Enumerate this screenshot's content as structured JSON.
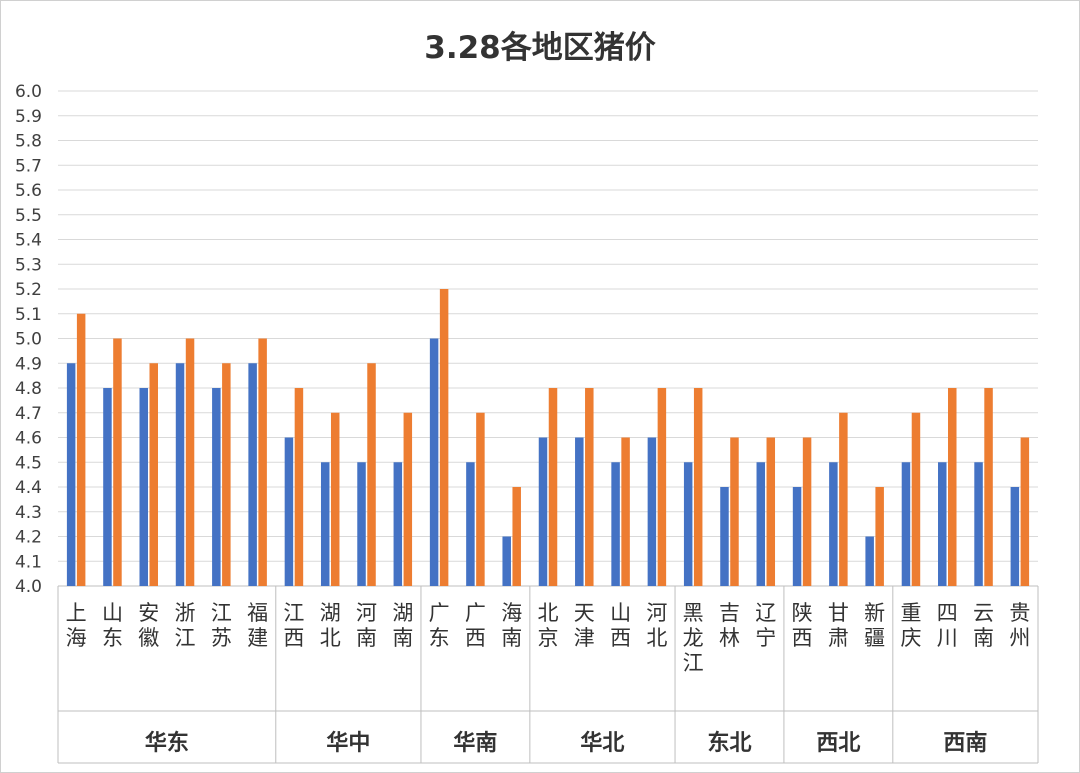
{
  "chart_data": {
    "type": "bar",
    "title": "3.28各地区猪价",
    "xlabel": "",
    "ylabel": "",
    "ylim": [
      4.0,
      6.0
    ],
    "yticks": [
      "4.0",
      "4.1",
      "4.2",
      "4.3",
      "4.4",
      "4.5",
      "4.6",
      "4.7",
      "4.8",
      "4.9",
      "5.0",
      "5.1",
      "5.2",
      "5.3",
      "5.4",
      "5.5",
      "5.6",
      "5.7",
      "5.8",
      "5.9",
      "6.0"
    ],
    "grid": true,
    "legend": "none",
    "colors": [
      "#4472C4",
      "#ED7D31"
    ],
    "categories": [
      "上海",
      "山东",
      "安徽",
      "浙江",
      "江苏",
      "福建",
      "江西",
      "湖北",
      "河南",
      "湖南",
      "广东",
      "广西",
      "海南",
      "北京",
      "天津",
      "山西",
      "河北",
      "黑龙江",
      "吉林",
      "辽宁",
      "陕西",
      "甘肃",
      "新疆",
      "重庆",
      "四川",
      "云南",
      "贵州"
    ],
    "series": [
      {
        "values": [
          4.9,
          4.8,
          4.8,
          4.9,
          4.8,
          4.9,
          4.6,
          4.5,
          4.5,
          4.5,
          5.0,
          4.5,
          4.2,
          4.6,
          4.6,
          4.5,
          4.6,
          4.5,
          4.4,
          4.5,
          4.4,
          4.5,
          4.2,
          4.5,
          4.5,
          4.5,
          4.4
        ]
      },
      {
        "values": [
          5.1,
          5.0,
          4.9,
          5.0,
          4.9,
          5.0,
          4.8,
          4.7,
          4.9,
          4.7,
          5.2,
          4.7,
          4.4,
          4.8,
          4.8,
          4.6,
          4.8,
          4.8,
          4.6,
          4.6,
          4.6,
          4.7,
          4.4,
          4.7,
          4.8,
          4.8,
          4.6
        ]
      }
    ],
    "groups": [
      {
        "name": "华东",
        "count": 6
      },
      {
        "name": "华中",
        "count": 4
      },
      {
        "name": "华南",
        "count": 3
      },
      {
        "name": "华北",
        "count": 4
      },
      {
        "name": "东北",
        "count": 3
      },
      {
        "name": "西北",
        "count": 3
      },
      {
        "name": "西南",
        "count": 4
      }
    ]
  }
}
